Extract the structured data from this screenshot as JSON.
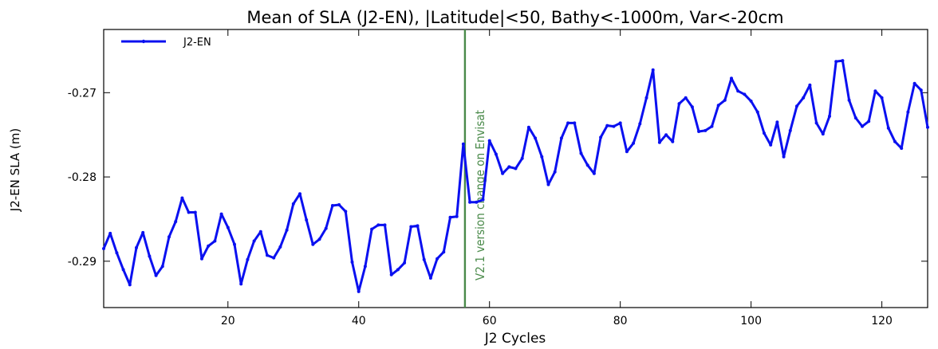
{
  "chart_data": {
    "type": "line",
    "title": "Mean of SLA (J2-EN), |Latitude|<50, Bathy<-1000m, Var<-20cm",
    "xlabel": "J2 Cycles",
    "ylabel": "J2-EN SLA (m)",
    "xlim": [
      1,
      127
    ],
    "ylim": [
      -0.2955,
      -0.2625
    ],
    "x_ticks": [
      20,
      40,
      60,
      80,
      100,
      120
    ],
    "y_ticks": [
      -0.29,
      -0.28,
      -0.27
    ],
    "grid": false,
    "legend": {
      "position": "top-left"
    },
    "colors": {
      "series": "#0a10f0",
      "vline": "#4a8a4a"
    },
    "annotations": [
      {
        "text": "V2.1 version change on Envisat",
        "x": 56
      }
    ],
    "series": [
      {
        "name": "J2-EN",
        "x": [
          1,
          2,
          3,
          4,
          5,
          6,
          7,
          8,
          9,
          10,
          11,
          12,
          13,
          14,
          15,
          16,
          17,
          18,
          19,
          20,
          21,
          22,
          23,
          24,
          25,
          26,
          27,
          28,
          29,
          30,
          31,
          32,
          33,
          34,
          35,
          36,
          37,
          38,
          39,
          40,
          41,
          42,
          43,
          44,
          45,
          46,
          47,
          48,
          49,
          50,
          51,
          52,
          53,
          54,
          55,
          56,
          57,
          58,
          59,
          60,
          61,
          62,
          63,
          64,
          65,
          66,
          67,
          68,
          69,
          70,
          71,
          72,
          73,
          74,
          75,
          76,
          77,
          78,
          79,
          80,
          81,
          82,
          83,
          84,
          85,
          86,
          87,
          88,
          89,
          90,
          91,
          92,
          93,
          94,
          95,
          96,
          97,
          98,
          99,
          100,
          101,
          102,
          103,
          104,
          105,
          106,
          107,
          108,
          109,
          110,
          111,
          112,
          113,
          114,
          115,
          116,
          117,
          118,
          119,
          120,
          121,
          122,
          123,
          124,
          125,
          126,
          127
        ],
        "values": [
          -0.2885,
          -0.2867,
          -0.289,
          -0.291,
          -0.2928,
          -0.2884,
          -0.2866,
          -0.2894,
          -0.2917,
          -0.2906,
          -0.2871,
          -0.2853,
          -0.2825,
          -0.2842,
          -0.2842,
          -0.2897,
          -0.2882,
          -0.2876,
          -0.2844,
          -0.286,
          -0.288,
          -0.2927,
          -0.2898,
          -0.2876,
          -0.2865,
          -0.2893,
          -0.2896,
          -0.2883,
          -0.2863,
          -0.2832,
          -0.282,
          -0.2851,
          -0.288,
          -0.2874,
          -0.2861,
          -0.2834,
          -0.2833,
          -0.2841,
          -0.2901,
          -0.2936,
          -0.2906,
          -0.2862,
          -0.2857,
          -0.2857,
          -0.2916,
          -0.291,
          -0.2902,
          -0.2859,
          -0.2858,
          -0.2898,
          -0.292,
          -0.2897,
          -0.2889,
          -0.2848,
          -0.2847,
          -0.2761,
          -0.283,
          -0.283,
          -0.2827,
          -0.2757,
          -0.2773,
          -0.2796,
          -0.2788,
          -0.279,
          -0.2778,
          -0.2741,
          -0.2754,
          -0.2776,
          -0.2809,
          -0.2794,
          -0.2754,
          -0.2736,
          -0.2736,
          -0.2772,
          -0.2786,
          -0.2796,
          -0.2753,
          -0.2739,
          -0.274,
          -0.2736,
          -0.277,
          -0.276,
          -0.2737,
          -0.2706,
          -0.2673,
          -0.2759,
          -0.275,
          -0.2758,
          -0.2713,
          -0.2706,
          -0.2717,
          -0.2746,
          -0.2745,
          -0.274,
          -0.2715,
          -0.2709,
          -0.2683,
          -0.2698,
          -0.2702,
          -0.271,
          -0.2723,
          -0.2748,
          -0.2762,
          -0.2735,
          -0.2776,
          -0.2745,
          -0.2716,
          -0.2706,
          -0.2691,
          -0.2736,
          -0.2749,
          -0.2728,
          -0.2663,
          -0.2662,
          -0.2709,
          -0.273,
          -0.274,
          -0.2734,
          -0.2698,
          -0.2706,
          -0.2742,
          -0.2758,
          -0.2766,
          -0.2723,
          -0.2689,
          -0.2697,
          -0.2741
        ]
      }
    ]
  }
}
